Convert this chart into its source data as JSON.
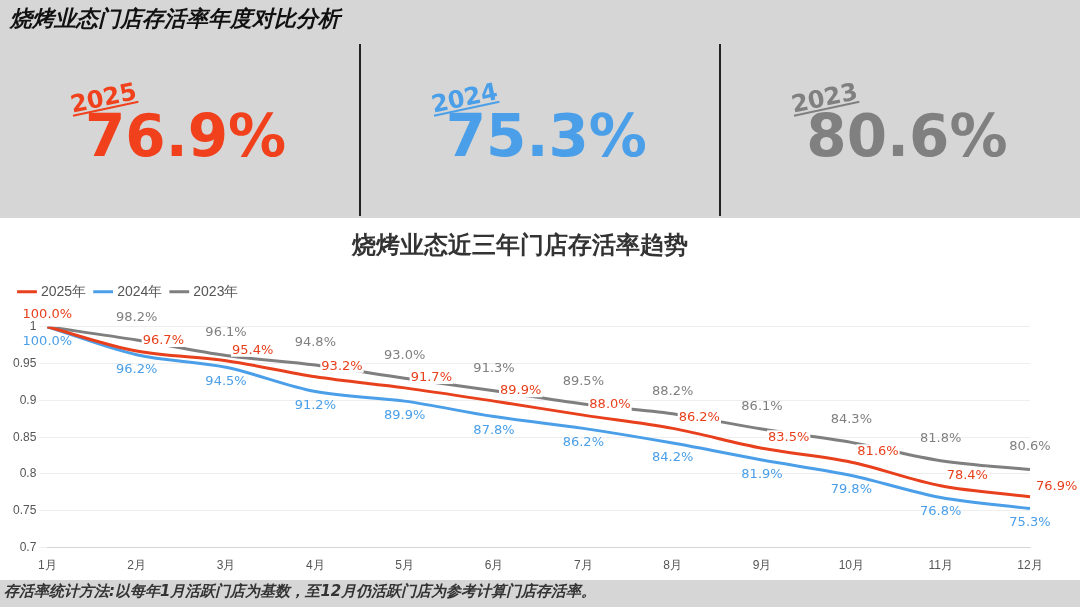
{
  "chart_data": [
    {
      "type": "other",
      "title": "烧烤业态门店存活率年度对比分析",
      "categories": [
        "2025",
        "2024",
        "2023"
      ],
      "values": [
        76.9,
        75.3,
        80.6
      ],
      "value_labels": [
        "76.9%",
        "75.3%",
        "80.6%"
      ],
      "colors": [
        "#f0401c",
        "#4a9fe8",
        "#808080"
      ]
    },
    {
      "type": "line",
      "title": "烧烤业态近三年门店存活率趋势",
      "categories": [
        "1月",
        "2月",
        "3月",
        "4月",
        "5月",
        "6月",
        "7月",
        "8月",
        "9月",
        "10月",
        "11月",
        "12月"
      ],
      "ylim": [
        0.7,
        1
      ],
      "yticks": [
        0.7,
        0.75,
        0.8,
        0.85,
        0.9,
        0.95,
        1
      ],
      "grid": "y",
      "legend": "top left",
      "marker": "none",
      "line_style": "solid",
      "series": [
        {
          "name": "2025年",
          "color": "#e8401c",
          "values": [
            1,
            0.967,
            0.954,
            0.932,
            0.917,
            0.899,
            0.88,
            0.862,
            0.835,
            0.816,
            0.784,
            0.769
          ],
          "value_labels": [
            "100.0%",
            "96.7%",
            "95.4%",
            "93.2%",
            "91.7%",
            "89.9%",
            "88.0%",
            "86.2%",
            "83.5%",
            "81.6%",
            "78.4%",
            "76.9%"
          ]
        },
        {
          "name": "2024年",
          "color": "#4a9fe8",
          "values": [
            1,
            0.962,
            0.945,
            0.912,
            0.899,
            0.878,
            0.862,
            0.842,
            0.819,
            0.798,
            0.768,
            0.753
          ],
          "value_labels": [
            "100.0%",
            "96.2%",
            "94.5%",
            "91.2%",
            "89.9%",
            "87.8%",
            "86.2%",
            "84.2%",
            "81.9%",
            "79.8%",
            "76.8%",
            "75.3%"
          ]
        },
        {
          "name": "2023年",
          "color": "#7f7f7f",
          "values": [
            1,
            0.982,
            0.961,
            0.948,
            0.93,
            0.913,
            0.895,
            0.882,
            0.861,
            0.843,
            0.818,
            0.806
          ],
          "value_labels": [
            null,
            "98.2%",
            "96.1%",
            "94.8%",
            "93.0%",
            "91.3%",
            "89.5%",
            "88.2%",
            "86.1%",
            "84.3%",
            "81.8%",
            "80.6%"
          ]
        }
      ],
      "annotations": [
        "存活率统计方法:以每年1月活跃门店为基数，至12月仍活跃门店为参考计算门店存活率。"
      ]
    }
  ]
}
